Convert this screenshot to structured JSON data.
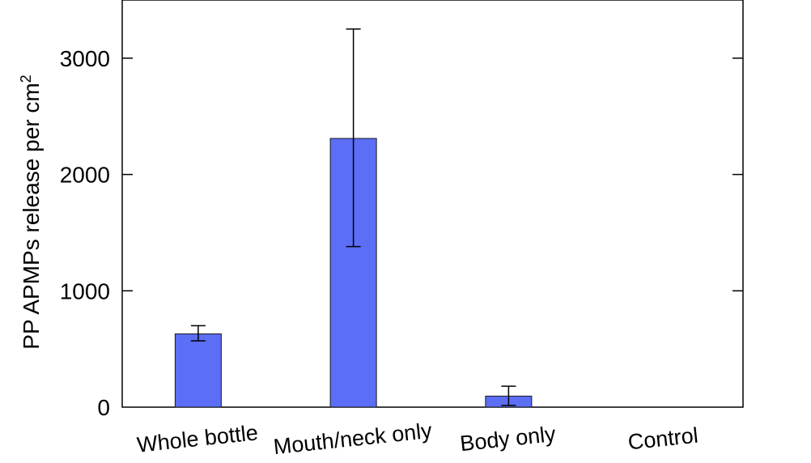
{
  "chart_data": {
    "type": "bar",
    "categories": [
      "Whole bottle",
      "Mouth/neck only",
      "Body only",
      "Control"
    ],
    "values": [
      630,
      2310,
      95,
      0
    ],
    "error_low": [
      570,
      1380,
      15,
      0
    ],
    "error_high": [
      700,
      3250,
      180,
      0
    ],
    "ylabel": "PP APMPs release per cm",
    "ylabel_superscript": "2",
    "yticks": [
      0,
      1000,
      2000,
      3000
    ],
    "ylim": [
      0,
      3500
    ],
    "grid": false,
    "bar_color": "#5b6ef5",
    "error_bar_color": "#000000",
    "category_label_rotation_deg": -6
  }
}
